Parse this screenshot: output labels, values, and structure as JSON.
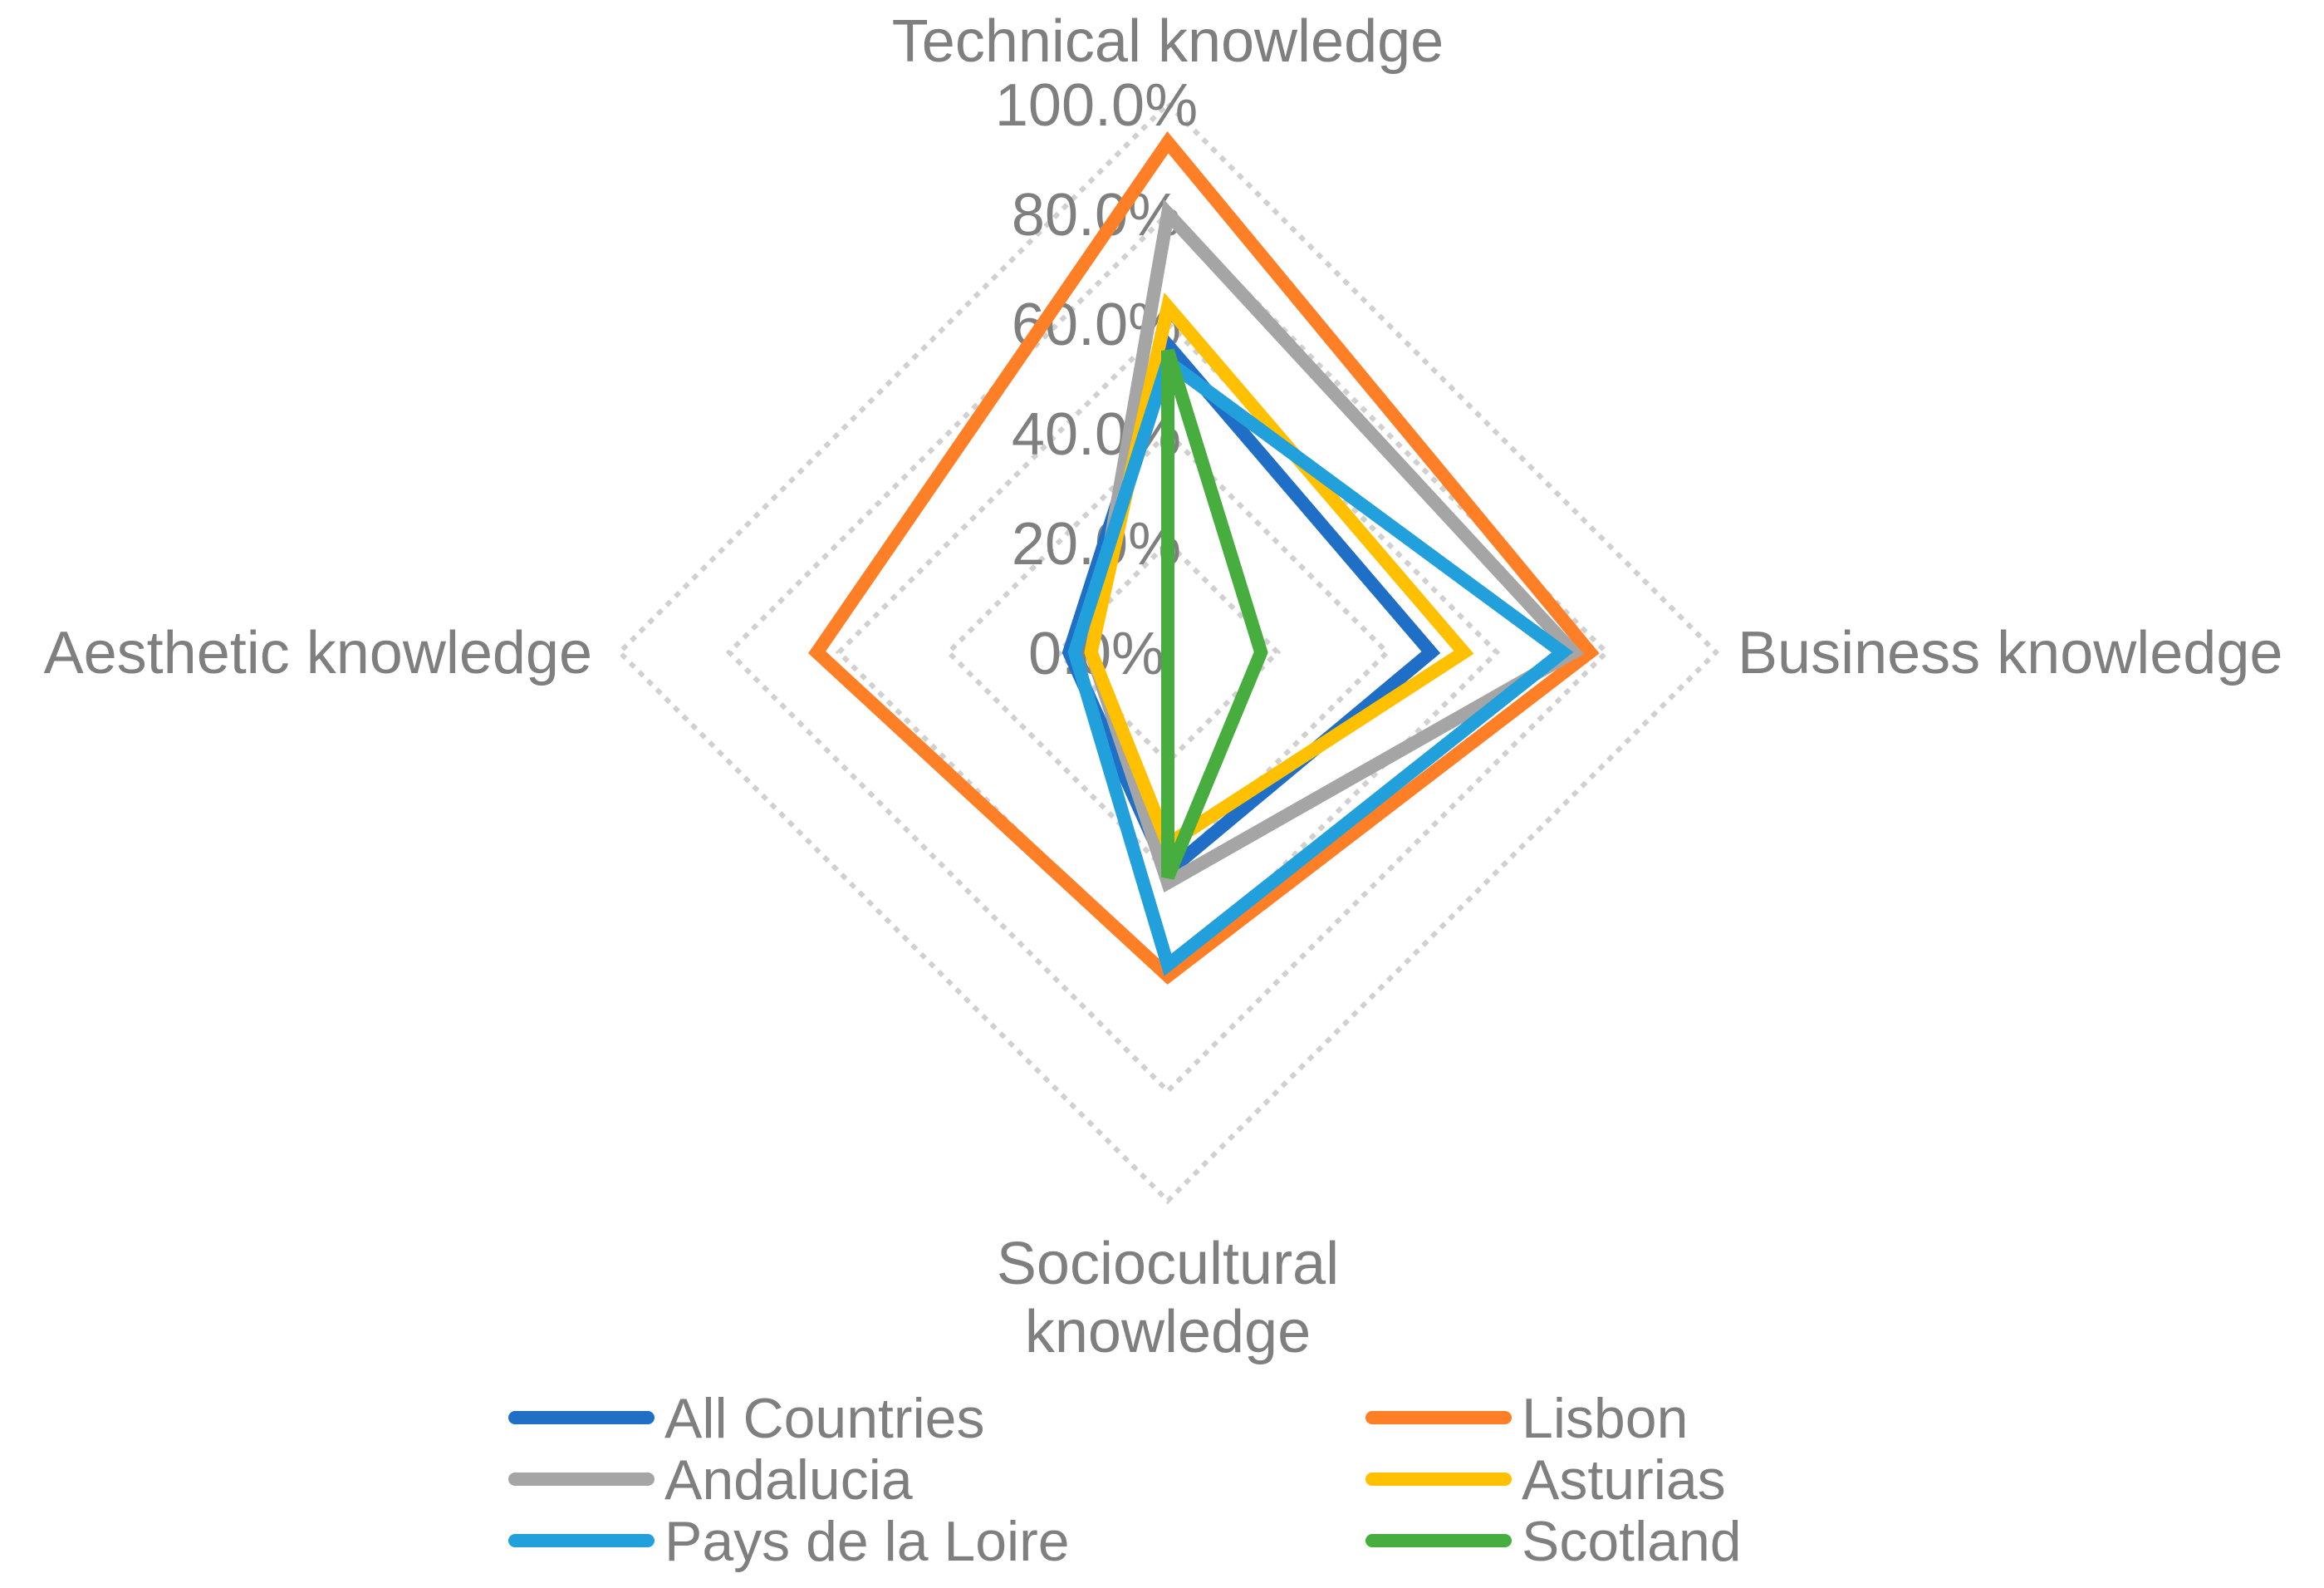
{
  "chart_data": {
    "type": "radar",
    "axes": [
      "Technical knowledge",
      "Business knowledge",
      "Sociocultural knowledge",
      "Aesthetic knowledge"
    ],
    "axis_labels": [
      [
        "Technical knowledge"
      ],
      [
        "Business knowledge"
      ],
      [
        "Sociocultural",
        "knowledge"
      ],
      [
        "Aesthetic knowledge"
      ]
    ],
    "tick_labels": [
      "0.0%",
      "20.0%",
      "40.0%",
      "60.0%",
      "80.0%",
      "100.0%"
    ],
    "ticks": [
      0,
      20,
      40,
      60,
      80,
      100
    ],
    "range": [
      0,
      100
    ],
    "unit": "%",
    "grid": true,
    "grid_style": "dotted",
    "legend_position": "bottom",
    "series": [
      {
        "name": "All Countries",
        "color": "#1f6fc6",
        "values": [
          56,
          48,
          40,
          18
        ]
      },
      {
        "name": "Lisbon",
        "color": "#ff7f27",
        "values": [
          93,
          77,
          59,
          64
        ]
      },
      {
        "name": "Andalucia",
        "color": "#a5a5a5",
        "values": [
          80,
          74,
          42,
          14
        ]
      },
      {
        "name": "Asturias",
        "color": "#ffc000",
        "values": [
          63,
          54,
          35,
          14
        ]
      },
      {
        "name": "Pays de la Loire",
        "color": "#22a0dc",
        "values": [
          53,
          72,
          57,
          17
        ]
      },
      {
        "name": "Scotland",
        "color": "#46ad3e",
        "values": [
          55,
          17,
          41,
          0
        ]
      }
    ]
  }
}
